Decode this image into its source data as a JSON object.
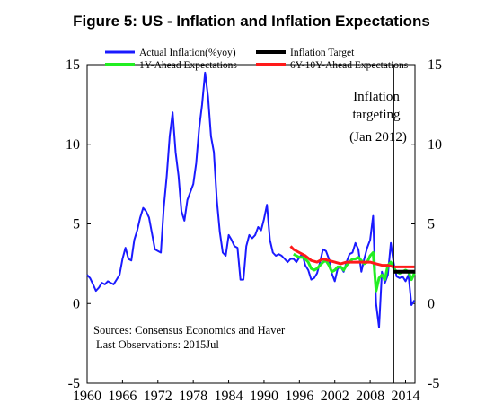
{
  "title": "Figure 5: US - Inflation and Inflation Expectations",
  "colors": {
    "actual": "#1a1aff",
    "target": "#000000",
    "oneyear": "#22ee22",
    "longterm": "#ff1a1a"
  },
  "chart_data": {
    "type": "line",
    "title": "Figure 5: US - Inflation and Inflation Expectations",
    "xlabel": "",
    "ylabel": "",
    "xlim": [
      1960,
      2015.6
    ],
    "ylim": [
      -5,
      15
    ],
    "x_ticks": [
      "1960",
      "1966",
      "1972",
      "1978",
      "1984",
      "1990",
      "1996",
      "2002",
      "2008",
      "2014"
    ],
    "y_ticks_left": [
      "15",
      "10",
      "5",
      "0",
      "-5"
    ],
    "y_ticks_right": [
      "15",
      "10",
      "5",
      "0",
      "-5"
    ],
    "grid": false,
    "legend_position": "top",
    "legend": [
      "Actual Inflation(%yoy)",
      "Inflation Target",
      "1Y-Ahead Expectations",
      "6Y-10Y-Ahead Expectations"
    ],
    "annotation": {
      "line1": "Inflation",
      "line2": "targeting",
      "line3": "(Jan 2012)",
      "x": 2012.0
    },
    "notes": [
      "Sources: Consensus Economics and Haver",
      "Last Observations: 2015Jul"
    ],
    "series": [
      {
        "name": "Actual Inflation(%yoy)",
        "x": [
          1960,
          1960.5,
          1961,
          1961.5,
          1962,
          1962.5,
          1963,
          1963.5,
          1964,
          1964.5,
          1965,
          1965.5,
          1966,
          1966.5,
          1967,
          1967.5,
          1968,
          1968.5,
          1969,
          1969.5,
          1970,
          1970.5,
          1971,
          1971.5,
          1972,
          1972.5,
          1973,
          1973.5,
          1974,
          1974.5,
          1975,
          1975.5,
          1976,
          1976.5,
          1977,
          1977.5,
          1978,
          1978.5,
          1979,
          1979.5,
          1980,
          1980.5,
          1981,
          1981.5,
          1982,
          1982.5,
          1983,
          1983.5,
          1984,
          1984.5,
          1985,
          1985.5,
          1986,
          1986.5,
          1987,
          1987.5,
          1988,
          1988.5,
          1989,
          1989.5,
          1990,
          1990.5,
          1991,
          1991.5,
          1992,
          1992.5,
          1993,
          1993.5,
          1994,
          1994.5,
          1995,
          1995.5,
          1996,
          1996.5,
          1997,
          1997.5,
          1998,
          1998.5,
          1999,
          1999.5,
          2000,
          2000.5,
          2001,
          2001.5,
          2002,
          2002.5,
          2003,
          2003.5,
          2004,
          2004.5,
          2005,
          2005.5,
          2006,
          2006.5,
          2007,
          2007.5,
          2008,
          2008.5,
          2009,
          2009.5,
          2010,
          2010.5,
          2011,
          2011.5,
          2012,
          2012.5,
          2013,
          2013.5,
          2014,
          2014.5,
          2015,
          2015.5
        ],
        "y": [
          1.8,
          1.6,
          1.2,
          0.8,
          1.0,
          1.3,
          1.2,
          1.4,
          1.3,
          1.2,
          1.5,
          1.8,
          2.8,
          3.5,
          2.8,
          2.7,
          4.0,
          4.6,
          5.4,
          6.0,
          5.8,
          5.4,
          4.4,
          3.4,
          3.3,
          3.2,
          6.0,
          8.0,
          10.5,
          12.0,
          9.5,
          8.0,
          5.8,
          5.2,
          6.5,
          7.0,
          7.5,
          8.8,
          11.0,
          12.5,
          14.5,
          13.0,
          10.5,
          9.5,
          6.5,
          4.5,
          3.2,
          3.0,
          4.3,
          4.0,
          3.6,
          3.5,
          1.5,
          1.5,
          3.6,
          4.3,
          4.1,
          4.3,
          4.8,
          4.6,
          5.3,
          6.2,
          4.0,
          3.2,
          3.0,
          3.1,
          3.0,
          2.8,
          2.6,
          2.8,
          2.8,
          2.6,
          2.9,
          3.1,
          2.4,
          2.1,
          1.5,
          1.6,
          1.9,
          2.6,
          3.4,
          3.3,
          2.8,
          1.9,
          1.4,
          2.2,
          2.3,
          2.0,
          2.6,
          3.1,
          3.2,
          3.8,
          3.4,
          2.0,
          2.8,
          3.5,
          4.0,
          5.5,
          0.0,
          -1.5,
          2.0,
          1.3,
          1.8,
          3.8,
          2.5,
          1.7,
          1.6,
          1.7,
          1.4,
          1.8,
          -0.1,
          0.2
        ]
      },
      {
        "name": "1Y-Ahead Expectations",
        "x": [
          1995,
          1995.5,
          1996,
          1996.5,
          1997,
          1997.5,
          1998,
          1998.5,
          1999,
          1999.5,
          2000,
          2000.5,
          2001,
          2001.5,
          2002,
          2002.5,
          2003,
          2003.5,
          2004,
          2004.5,
          2005,
          2005.5,
          2006,
          2006.5,
          2007,
          2007.5,
          2008,
          2008.5,
          2009,
          2009.5,
          2010,
          2010.5,
          2011,
          2011.5,
          2012,
          2012.5,
          2013,
          2013.5,
          2014,
          2014.5,
          2015,
          2015.5
        ],
        "y": [
          3.1,
          3.0,
          2.9,
          2.9,
          2.8,
          2.6,
          2.2,
          2.1,
          2.2,
          2.4,
          2.6,
          2.7,
          2.4,
          2.0,
          2.1,
          2.3,
          2.3,
          2.1,
          2.4,
          2.6,
          2.8,
          2.8,
          2.9,
          2.7,
          2.5,
          2.6,
          3.0,
          3.2,
          0.8,
          1.6,
          1.8,
          1.5,
          2.4,
          2.6,
          2.2,
          2.0,
          1.9,
          2.0,
          2.1,
          2.0,
          1.5,
          1.9
        ]
      },
      {
        "name": "6Y-10Y-Ahead Expectations",
        "x": [
          1994.5,
          1995,
          1996,
          1997,
          1998,
          1999,
          2000,
          2001,
          2002,
          2003,
          2004,
          2005,
          2006,
          2007,
          2008,
          2009,
          2010,
          2011,
          2012,
          2013,
          2014,
          2015,
          2015.5
        ],
        "y": [
          3.6,
          3.4,
          3.2,
          3.0,
          2.7,
          2.6,
          2.8,
          2.7,
          2.6,
          2.5,
          2.6,
          2.6,
          2.6,
          2.6,
          2.6,
          2.5,
          2.4,
          2.4,
          2.3,
          2.3,
          2.3,
          2.3,
          2.3
        ]
      },
      {
        "name": "Inflation Target",
        "x": [
          2012,
          2015.6
        ],
        "y": [
          2.0,
          2.0
        ]
      }
    ]
  }
}
